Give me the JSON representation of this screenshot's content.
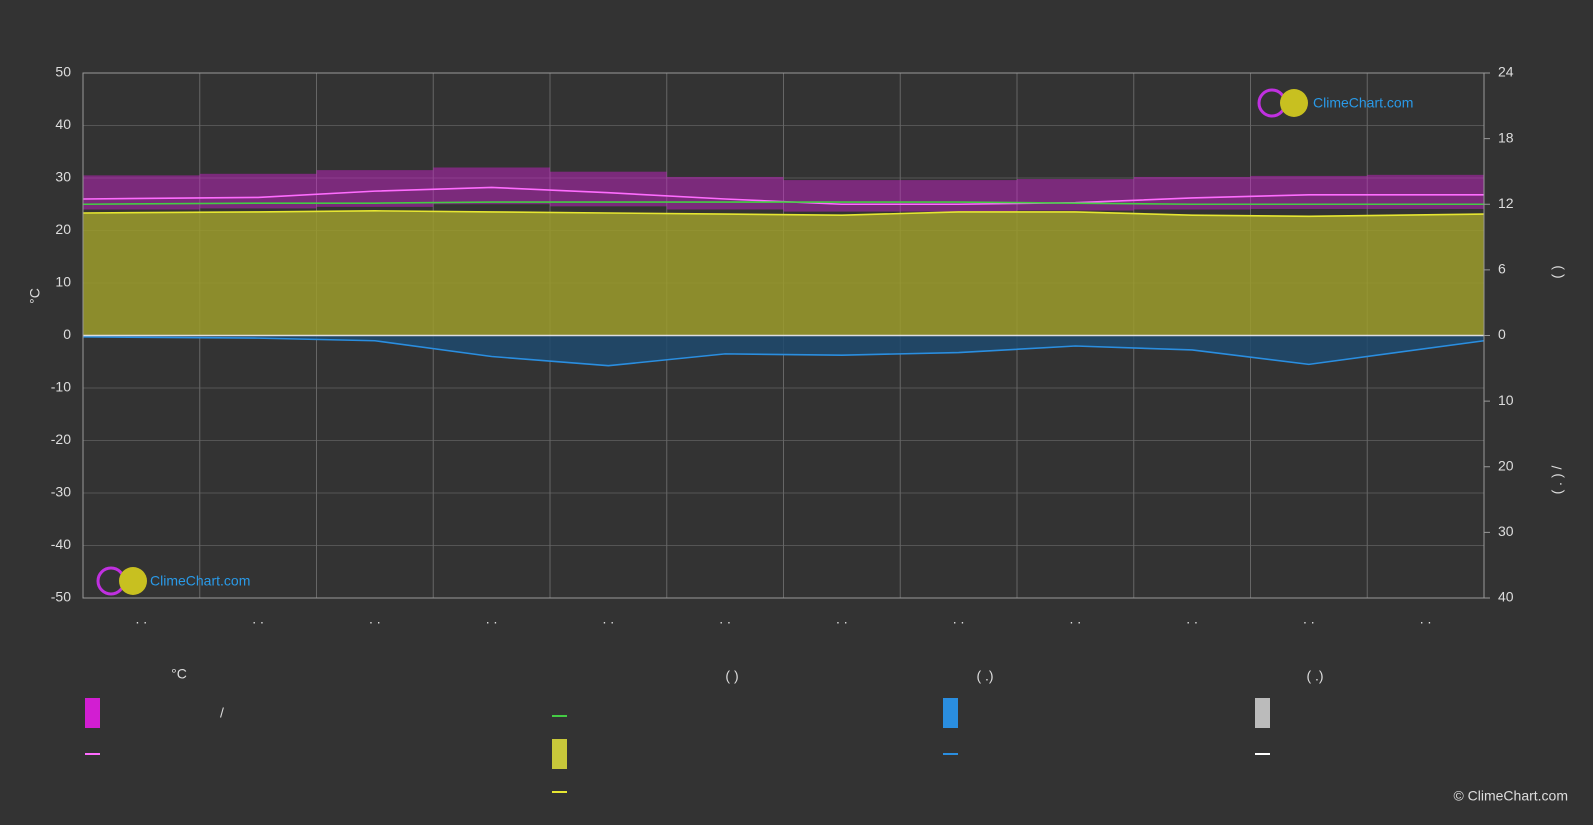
{
  "chart_data": {
    "type": "line",
    "y_label": "°C",
    "y2_label": "(          )",
    "y3_label": "(  .  )          /",
    "categories": [
      ". .",
      ". .",
      ". .",
      ". .",
      ". .",
      ". .",
      ". .",
      ". .",
      ". .",
      ". .",
      ". .",
      ". ."
    ],
    "ylim": [
      -50,
      50
    ],
    "yticks": [
      50,
      40,
      30,
      20,
      10,
      0,
      -10,
      -20,
      -30,
      -40,
      -50
    ],
    "y2lim": [
      0,
      24
    ],
    "y2ticks": [
      24,
      18,
      12,
      6,
      0
    ],
    "y3lim": [
      0,
      40
    ],
    "y3ticks": [
      10,
      20,
      30,
      40
    ],
    "grid": true,
    "band": {
      "color": "#d21ed2",
      "low": [
        24,
        24.2,
        24.5,
        25,
        24.6,
        24,
        23.6,
        23.6,
        23.8,
        24,
        24.1,
        24.1
      ],
      "high": [
        30.5,
        30.8,
        31.5,
        32,
        31.2,
        30.2,
        29.6,
        29.6,
        29.8,
        30.2,
        30.4,
        30.6
      ]
    },
    "series": [
      {
        "color": "#ff6cff",
        "axis": "y",
        "values": [
          26,
          26.3,
          27.5,
          28.2,
          27.2,
          26,
          25,
          25,
          25.3,
          26.2,
          26.8,
          26.8
        ]
      },
      {
        "color": "#44cc44",
        "axis": "y2",
        "values": [
          12.0,
          12.1,
          12.1,
          12.2,
          12.2,
          12.2,
          12.2,
          12.2,
          12.1,
          12.0,
          12.0,
          12.0
        ]
      },
      {
        "color": "#e6e632",
        "axis": "y2",
        "fill": "#9c9c2c",
        "values": [
          11.2,
          11.3,
          11.4,
          11.3,
          11.2,
          11.1,
          11.0,
          11.3,
          11.3,
          11.0,
          10.9,
          11.1
        ]
      },
      {
        "color": "#2a8ee0",
        "axis": "y3",
        "fill": "#1f4a6e",
        "values": [
          0.2,
          0.4,
          0.8,
          3.2,
          4.6,
          2.8,
          3.0,
          2.6,
          1.6,
          2.2,
          4.4,
          0.8
        ]
      }
    ],
    "legend_headers": [
      "°C",
      "(          )",
      "(   .)",
      "(   .)"
    ],
    "legend_text": "/",
    "watermark": "ClimeChart.com",
    "copyright": "© ClimeChart.com"
  }
}
